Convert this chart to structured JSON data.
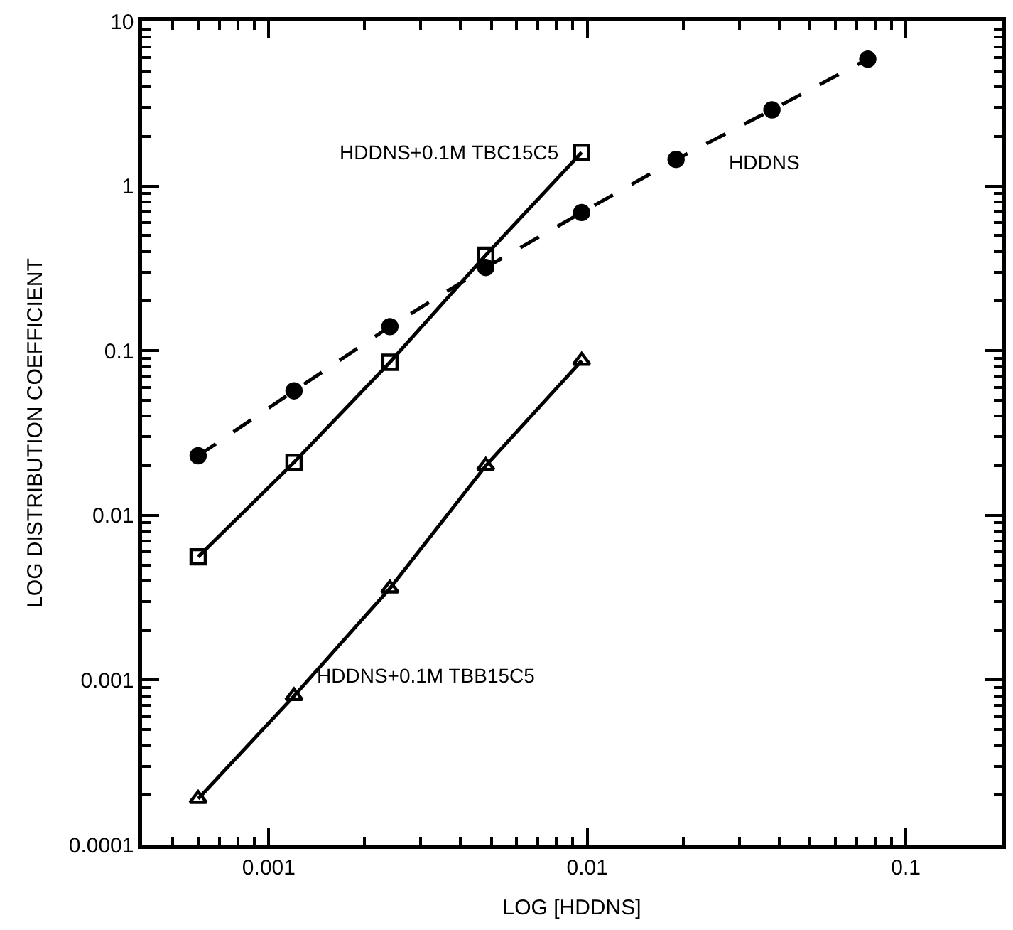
{
  "chart_data": {
    "type": "line",
    "xlabel": "LOG [HDDNS]",
    "ylabel": "LOG DISTRIBUTION COEFFICIENT",
    "log": "xy",
    "xlim": [
      0.0004,
      0.2
    ],
    "ylim": [
      0.0001,
      10
    ],
    "xticks": [
      0.001,
      0.01,
      0.1
    ],
    "yticks": [
      0.0001,
      0.001,
      0.01,
      0.1,
      1,
      10
    ],
    "series": [
      {
        "name": "HDDNS",
        "color": "#000000",
        "marker": "circle",
        "line_style": "dashed",
        "x": [
          0.0006,
          0.0012,
          0.0024,
          0.0048,
          0.0096,
          0.019,
          0.038,
          0.076
        ],
        "values": [
          0.023,
          0.057,
          0.14,
          0.32,
          0.69,
          1.45,
          2.9,
          5.9
        ]
      },
      {
        "name": "HDDNS+0.1M TBC15C5",
        "color": "#000000",
        "marker": "square",
        "line_style": "solid",
        "x": [
          0.0006,
          0.0012,
          0.0024,
          0.0048,
          0.0096
        ],
        "values": [
          0.0056,
          0.021,
          0.085,
          0.38,
          1.6
        ]
      },
      {
        "name": "HDDNS+0.1M TBB15C5",
        "color": "#000000",
        "marker": "triangle",
        "line_style": "solid",
        "x": [
          0.0006,
          0.0012,
          0.0024,
          0.0048,
          0.0096
        ],
        "values": [
          0.00019,
          0.0008,
          0.0036,
          0.02,
          0.087
        ]
      }
    ]
  }
}
